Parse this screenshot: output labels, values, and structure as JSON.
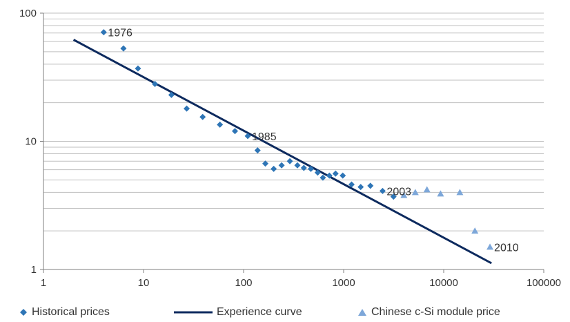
{
  "colors": {
    "historical": "#2E75B6",
    "experience": "#0D2A5E",
    "chinese": "#7DA7D9",
    "gridline": "#BFBFBF",
    "axis": "#7F7F7F"
  },
  "chart_data": {
    "type": "scatter",
    "x_scale": "log",
    "y_scale": "log",
    "xlim": [
      1,
      100000
    ],
    "ylim": [
      1,
      100
    ],
    "grid": true,
    "legend_position": "bottom",
    "x_ticks": [
      "1",
      "10",
      "100",
      "1000",
      "10000",
      "100000"
    ],
    "y_ticks": [
      "1",
      "10",
      "100"
    ],
    "series": [
      {
        "name": "Historical prices",
        "kind": "scatter",
        "marker": "diamond",
        "points": [
          [
            4,
            71
          ],
          [
            6.3,
            53
          ],
          [
            8.8,
            37
          ],
          [
            13,
            28
          ],
          [
            19,
            23
          ],
          [
            27,
            18
          ],
          [
            39,
            15.5
          ],
          [
            58,
            13.5
          ],
          [
            82,
            12
          ],
          [
            110,
            11
          ],
          [
            138,
            8.5
          ],
          [
            165,
            6.7
          ],
          [
            200,
            6.1
          ],
          [
            240,
            6.5
          ],
          [
            290,
            7.0
          ],
          [
            345,
            6.5
          ],
          [
            400,
            6.2
          ],
          [
            470,
            6.1
          ],
          [
            550,
            5.7
          ],
          [
            620,
            5.2
          ],
          [
            720,
            5.4
          ],
          [
            830,
            5.6
          ],
          [
            980,
            5.4
          ],
          [
            1200,
            4.6
          ],
          [
            1480,
            4.4
          ],
          [
            1850,
            4.5
          ],
          [
            2450,
            4.1
          ],
          [
            3150,
            3.7
          ]
        ]
      },
      {
        "name": "Experience curve",
        "kind": "line",
        "points": [
          [
            2,
            62
          ],
          [
            30000,
            1.12
          ]
        ]
      },
      {
        "name": "Chinese c-Si module price",
        "kind": "scatter",
        "marker": "triangle",
        "points": [
          [
            4000,
            3.8
          ],
          [
            5200,
            4.0
          ],
          [
            6800,
            4.2
          ],
          [
            9300,
            3.9
          ],
          [
            14500,
            4.0
          ],
          [
            20500,
            2.0
          ],
          [
            29000,
            1.5
          ]
        ]
      }
    ],
    "annotations": [
      {
        "text": "1976",
        "x": 4,
        "y": 71
      },
      {
        "text": "1985",
        "x": 110,
        "y": 11
      },
      {
        "text": "2003",
        "x": 2450,
        "y": 4.1
      },
      {
        "text": "2010",
        "x": 29000,
        "y": 1.5
      }
    ]
  }
}
